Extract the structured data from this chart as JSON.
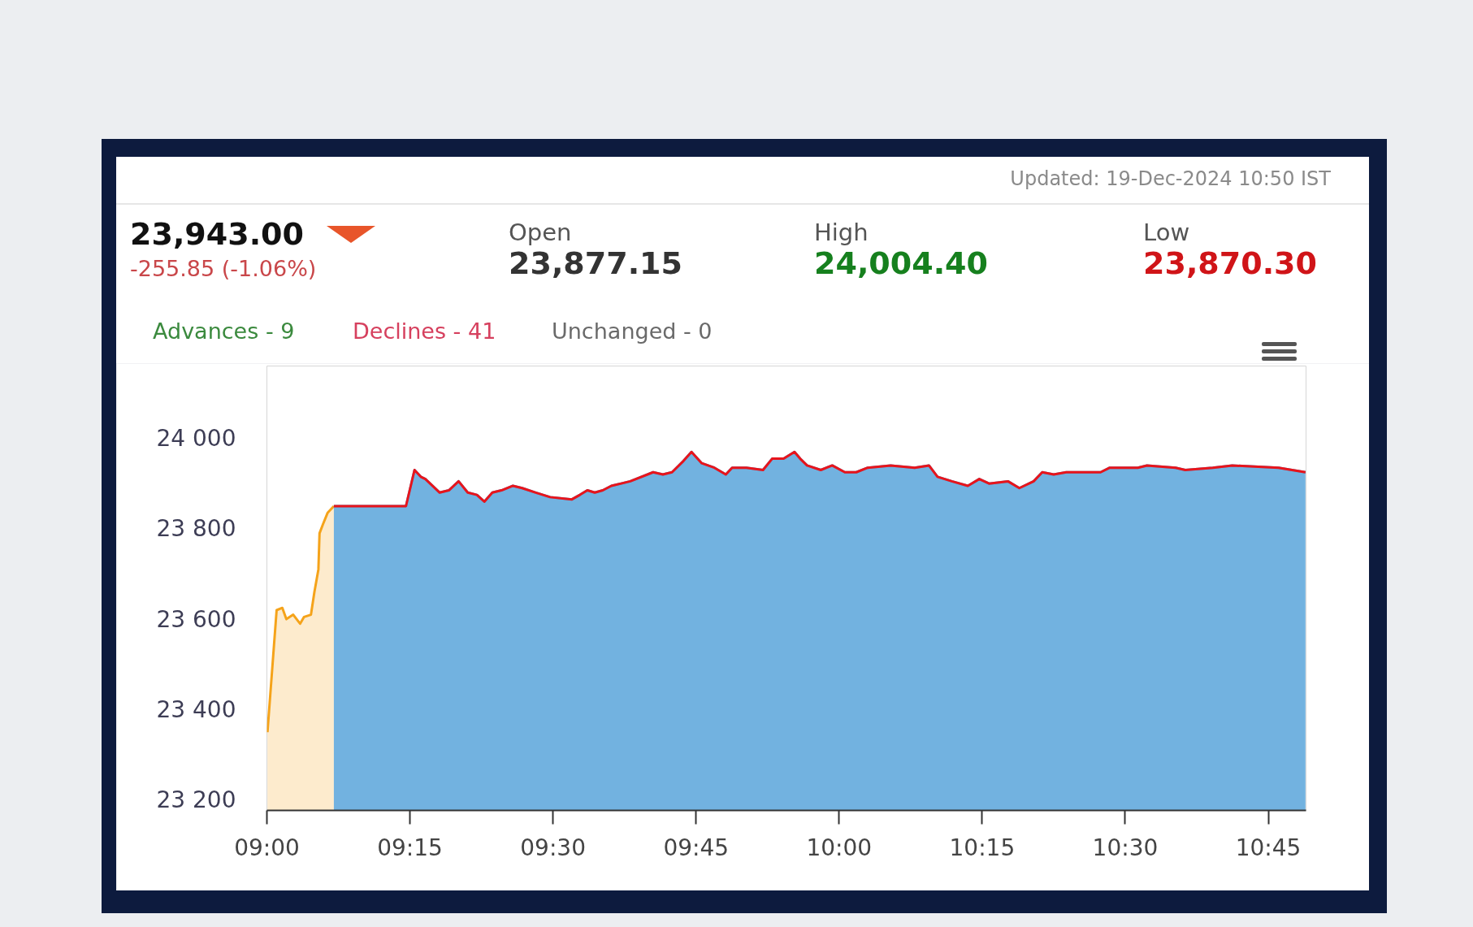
{
  "chart_data": {
    "type": "area",
    "annotations": [
      "Updated: 19-Dec-2024 10:50 IST",
      "23,943.00",
      "-255.85 (-1.06%)",
      "Open",
      "23,877.15",
      "High",
      "24,004.40",
      "Low",
      "23,870.30",
      "Advances - 9",
      "Declines - 41",
      "Unchanged - 0"
    ],
    "xlim": [
      9,
      10.816
    ],
    "ylim": [
      23177,
      24160
    ],
    "xticks": [
      {
        "value": 9,
        "label": "09:00"
      },
      {
        "value": 9.25,
        "label": "09:15"
      },
      {
        "value": 9.5,
        "label": "09:30"
      },
      {
        "value": 9.75,
        "label": "09:45"
      },
      {
        "value": 10,
        "label": "10:00"
      },
      {
        "value": 10.25,
        "label": "10:15"
      },
      {
        "value": 10.5,
        "label": "10:30"
      },
      {
        "value": 10.75,
        "label": "10:45"
      }
    ],
    "yticks": [
      {
        "value": 23200,
        "label": "23 200"
      },
      {
        "value": 23400,
        "label": "23 400"
      },
      {
        "value": 23600,
        "label": "23 600"
      },
      {
        "value": 23800,
        "label": "23 800"
      },
      {
        "value": 24000,
        "label": "24 000"
      }
    ],
    "series": [
      {
        "color": "#f5a31a",
        "x": [
          9.001,
          9.017,
          9.027,
          9.034,
          9.046,
          9.058,
          9.065,
          9.077,
          9.083,
          9.09,
          9.092,
          9.098,
          9.106,
          9.117
        ],
        "values": [
          23350,
          23620,
          23625,
          23600,
          23610,
          23590,
          23605,
          23610,
          23660,
          23710,
          23790,
          23810,
          23835,
          23850
        ]
      },
      {
        "color": "#4f9fd8",
        "x": [
          9.117,
          9.243,
          9.258,
          9.269,
          9.277,
          9.302,
          9.318,
          9.335,
          9.351,
          9.367,
          9.38,
          9.394,
          9.41,
          9.43,
          9.446,
          9.47,
          9.495,
          9.533,
          9.547,
          9.56,
          9.573,
          9.587,
          9.602,
          9.635,
          9.675,
          9.692,
          9.708,
          9.728,
          9.742,
          9.76,
          9.782,
          9.802,
          9.813,
          9.838,
          9.867,
          9.883,
          9.903,
          9.922,
          9.932,
          9.944,
          9.968,
          9.988,
          10.01,
          10.03,
          10.05,
          10.09,
          10.132,
          10.157,
          10.172,
          10.197,
          10.225,
          10.245,
          10.262,
          10.295,
          10.315,
          10.34,
          10.355,
          10.375,
          10.397,
          10.457,
          10.473,
          10.522,
          10.538,
          10.588,
          10.605,
          10.653,
          10.687,
          10.768,
          10.815
        ],
        "values": [
          23850,
          23850,
          23930,
          23915,
          23910,
          23880,
          23885,
          23905,
          23880,
          23875,
          23860,
          23880,
          23885,
          23895,
          23890,
          23880,
          23870,
          23865,
          23875,
          23885,
          23880,
          23885,
          23895,
          23905,
          23925,
          23920,
          23925,
          23950,
          23970,
          23945,
          23935,
          23920,
          23935,
          23935,
          23930,
          23955,
          23955,
          23970,
          23955,
          23940,
          23930,
          23940,
          23925,
          23925,
          23935,
          23940,
          23935,
          23940,
          23915,
          23905,
          23895,
          23910,
          23900,
          23905,
          23890,
          23905,
          23925,
          23920,
          23925,
          23925,
          23935,
          23935,
          23940,
          23935,
          23930,
          23935,
          23940,
          23935,
          23925
        ]
      },
      {
        "type": "line",
        "color": "#e8141b",
        "x": [
          9.117,
          9.243,
          9.258,
          9.269,
          9.277,
          9.302,
          9.318,
          9.335,
          9.351,
          9.367,
          9.38,
          9.394,
          9.41,
          9.43,
          9.446,
          9.47,
          9.495,
          9.533,
          9.547,
          9.56,
          9.573,
          9.587,
          9.602,
          9.635,
          9.675,
          9.692,
          9.708,
          9.728,
          9.742,
          9.76,
          9.782,
          9.802,
          9.813,
          9.838,
          9.867,
          9.883,
          9.903,
          9.922,
          9.932,
          9.944,
          9.968,
          9.988,
          10.01,
          10.03,
          10.05,
          10.09,
          10.132,
          10.157,
          10.172,
          10.197,
          10.225,
          10.245,
          10.262,
          10.295,
          10.315,
          10.34,
          10.355,
          10.375,
          10.397,
          10.457,
          10.473,
          10.522,
          10.538,
          10.588,
          10.605,
          10.653,
          10.687,
          10.768,
          10.815
        ],
        "values": [
          23850,
          23850,
          23930,
          23915,
          23910,
          23880,
          23885,
          23905,
          23880,
          23875,
          23860,
          23880,
          23885,
          23895,
          23890,
          23880,
          23870,
          23865,
          23875,
          23885,
          23880,
          23885,
          23895,
          23905,
          23925,
          23920,
          23925,
          23950,
          23970,
          23945,
          23935,
          23920,
          23935,
          23935,
          23930,
          23955,
          23955,
          23970,
          23955,
          23940,
          23930,
          23940,
          23925,
          23925,
          23935,
          23940,
          23935,
          23940,
          23915,
          23905,
          23895,
          23910,
          23900,
          23905,
          23890,
          23905,
          23925,
          23920,
          23925,
          23925,
          23935,
          23935,
          23940,
          23935,
          23930,
          23935,
          23940,
          23935,
          23925
        ]
      }
    ]
  }
}
